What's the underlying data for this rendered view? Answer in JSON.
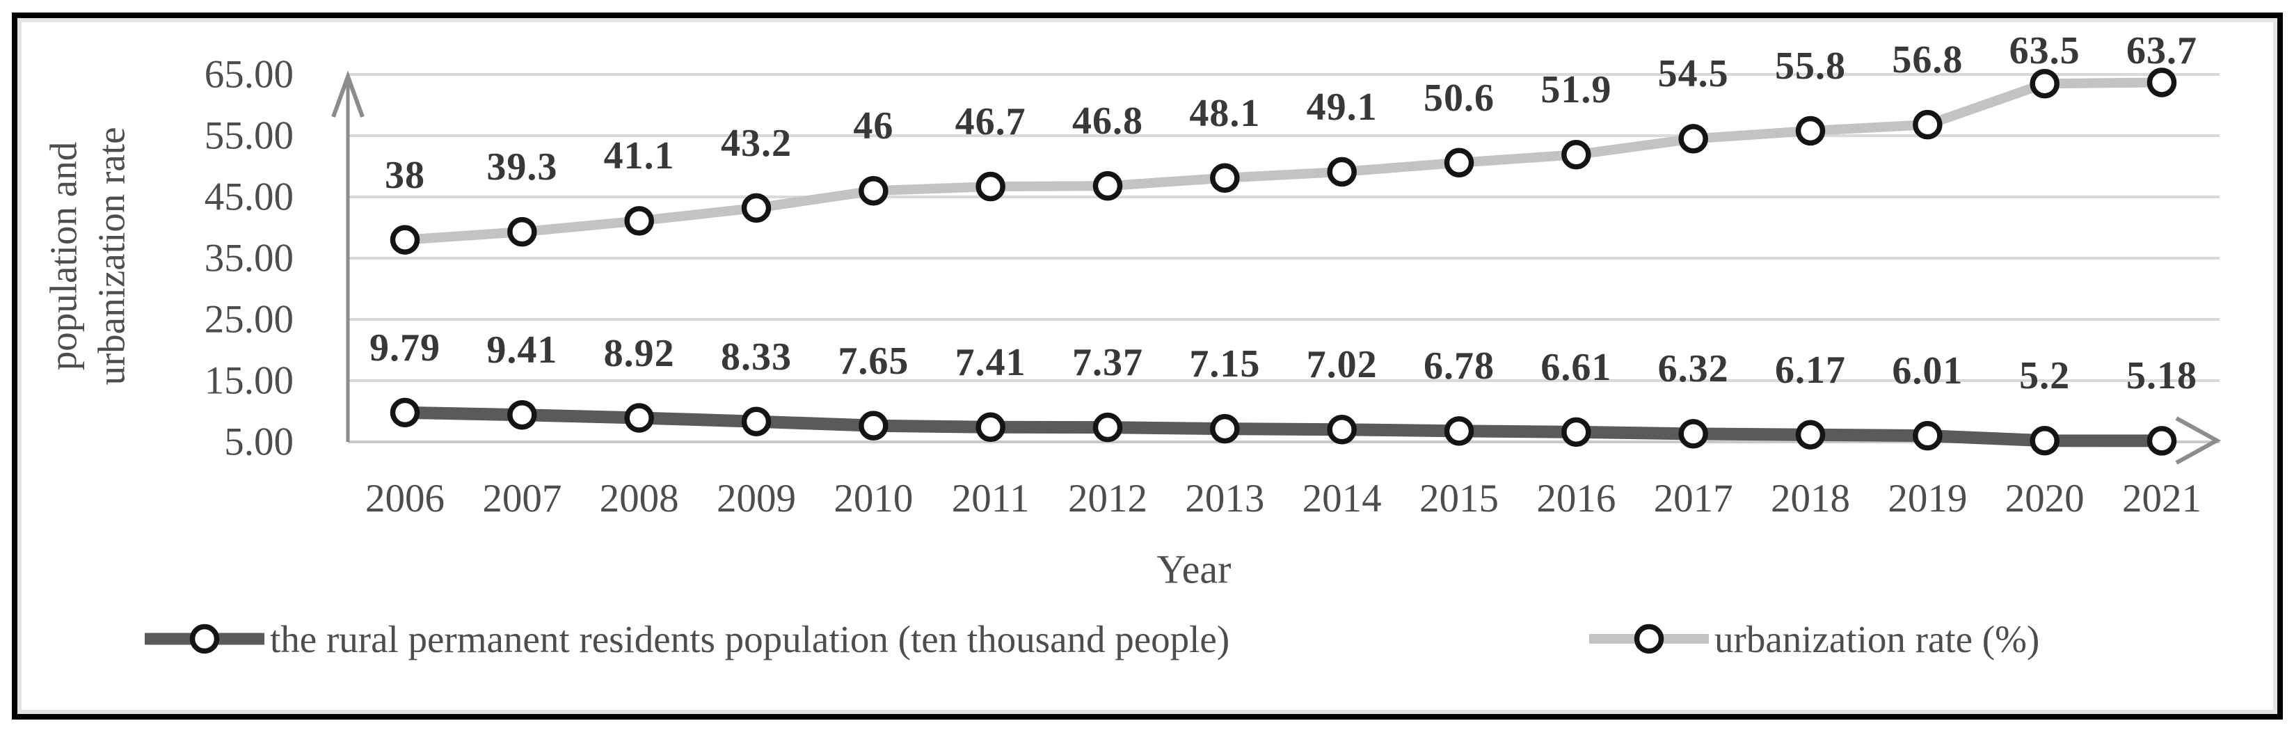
{
  "chart_data": {
    "type": "line",
    "categories": [
      "2006",
      "2007",
      "2008",
      "2009",
      "2010",
      "2011",
      "2012",
      "2013",
      "2014",
      "2015",
      "2016",
      "2017",
      "2018",
      "2019",
      "2020",
      "2021"
    ],
    "series": [
      {
        "name": "the rural permanent residents population  (ten thousand people)",
        "values": [
          9.79,
          9.41,
          8.92,
          8.33,
          7.65,
          7.41,
          7.37,
          7.15,
          7.02,
          6.78,
          6.61,
          6.32,
          6.17,
          6.01,
          5.2,
          5.18
        ],
        "labels": [
          "9.79",
          "9.41",
          "8.92",
          "8.33",
          "7.65",
          "7.41",
          "7.37",
          "7.15",
          "7.02",
          "6.78",
          "6.61",
          "6.32",
          "6.17",
          "6.01",
          "5.2",
          "5.18"
        ],
        "color": "#5a5a5a",
        "line_width": 18,
        "marker": "open-circle"
      },
      {
        "name": "urbanization rate  (%)",
        "values": [
          38,
          39.3,
          41.1,
          43.2,
          46,
          46.7,
          46.8,
          48.1,
          49.1,
          50.6,
          51.9,
          54.5,
          55.8,
          56.8,
          63.5,
          63.7
        ],
        "labels": [
          "38",
          "39.3",
          "41.1",
          "43.2",
          "46",
          "46.7",
          "46.8",
          "48.1",
          "49.1",
          "50.6",
          "51.9",
          "54.5",
          "55.8",
          "56.8",
          "63.5",
          "63.7"
        ],
        "color": "#c3c3c3",
        "line_width": 14,
        "marker": "open-circle"
      }
    ],
    "xlabel": "Year",
    "ylabel_lines": [
      "population and",
      "urbanization rate"
    ],
    "y_ticks": [
      "65.00",
      "55.00",
      "45.00",
      "35.00",
      "25.00",
      "15.00",
      "5.00"
    ],
    "ylim": [
      5,
      65
    ],
    "grid": true,
    "legend_position": "bottom",
    "colors": {
      "gridline": "#d9d9d9",
      "axis": "#8c8c8c",
      "baseline": "#c9c9c9",
      "marker_fill": "#ffffff",
      "marker_ring": "#141414",
      "tick_text": "#4d4d4d",
      "data_label_text": "#383838",
      "frame_border": "#000000",
      "frame_inner_edge": "#e4e4e4"
    }
  }
}
